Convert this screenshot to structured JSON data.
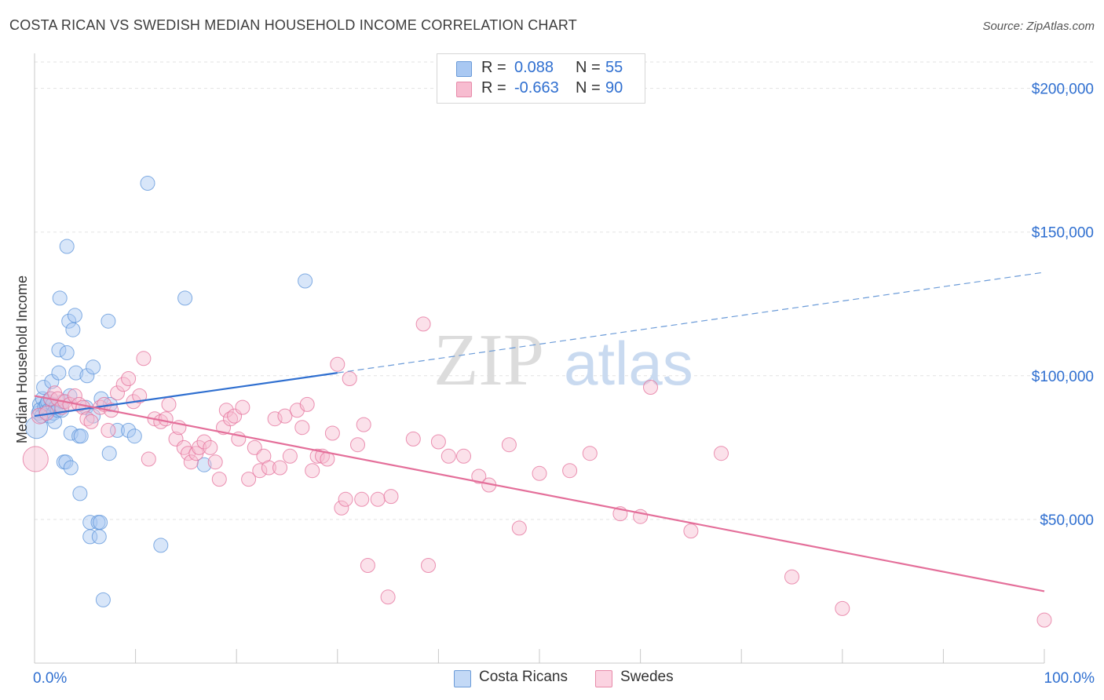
{
  "header": {
    "title": "COSTA RICAN VS SWEDISH MEDIAN HOUSEHOLD INCOME CORRELATION CHART",
    "source": "Source: ZipAtlas.com"
  },
  "watermark": {
    "part1": "ZIP",
    "part2": "atlas"
  },
  "legend_top": {
    "rows": [
      {
        "r_label": "R =",
        "r_value": "0.088",
        "n_label": "N =",
        "n_value": "55",
        "color": "#a9c8f2",
        "stroke": "#6b9bd8"
      },
      {
        "r_label": "R =",
        "r_value": "-0.663",
        "n_label": "N =",
        "n_value": "90",
        "color": "#f7bcd0",
        "stroke": "#e78aa9"
      }
    ]
  },
  "legend_bottom": {
    "items": [
      {
        "label": "Costa Ricans",
        "color": "#a9c8f2",
        "stroke": "#6b9bd8"
      },
      {
        "label": "Swedes",
        "color": "#f7bcd0",
        "stroke": "#e78aa9"
      }
    ]
  },
  "chart_data": {
    "type": "scatter",
    "title": "COSTA RICAN VS SWEDISH MEDIAN HOUSEHOLD INCOME CORRELATION CHART",
    "xlabel": "",
    "ylabel": "Median Household Income",
    "xlim": [
      0,
      100
    ],
    "ylim": [
      0,
      210000
    ],
    "x_tick_labels": [
      "0.0%",
      "100.0%"
    ],
    "y_ticks": [
      50000,
      100000,
      150000,
      200000
    ],
    "y_tick_labels": [
      "$50,000",
      "$100,000",
      "$150,000",
      "$200,000"
    ],
    "grid": true,
    "legend_position": "top-center",
    "series": [
      {
        "name": "Costa Ricans",
        "color": "#5b93d9",
        "fill": "#a9c8f2",
        "r": 0.088,
        "n": 55,
        "trend": {
          "x0": 0,
          "y0": 86000,
          "x1": 30,
          "y1": 101000,
          "dash_to_x": 100,
          "dash_to_y": 136000
        },
        "points": [
          [
            0.2,
            82000,
            14
          ],
          [
            0.4,
            87000,
            9
          ],
          [
            0.5,
            90000,
            9
          ],
          [
            0.6,
            88000,
            10
          ],
          [
            0.7,
            86000,
            9
          ],
          [
            0.8,
            92000,
            9
          ],
          [
            0.9,
            96000,
            9
          ],
          [
            1.0,
            89000,
            9
          ],
          [
            1.1,
            87500,
            9
          ],
          [
            1.2,
            90000,
            9
          ],
          [
            1.3,
            91000,
            9
          ],
          [
            1.4,
            88000,
            9
          ],
          [
            1.5,
            86000,
            9
          ],
          [
            1.6,
            92000,
            9
          ],
          [
            1.7,
            98000,
            9
          ],
          [
            1.8,
            90000,
            9
          ],
          [
            1.9,
            87000,
            9
          ],
          [
            2.0,
            84000,
            9
          ],
          [
            2.1,
            89000,
            9
          ],
          [
            2.3,
            88000,
            9
          ],
          [
            2.4,
            101000,
            9
          ],
          [
            2.4,
            109000,
            9
          ],
          [
            2.5,
            127000,
            9
          ],
          [
            2.7,
            88000,
            9
          ],
          [
            2.8,
            91000,
            9
          ],
          [
            2.9,
            70000,
            9
          ],
          [
            3.1,
            70000,
            9
          ],
          [
            3.2,
            108000,
            9
          ],
          [
            3.2,
            145000,
            9
          ],
          [
            3.4,
            119000,
            9
          ],
          [
            3.5,
            93000,
            9
          ],
          [
            3.6,
            68000,
            9
          ],
          [
            3.6,
            80000,
            9
          ],
          [
            3.8,
            116000,
            9
          ],
          [
            4.0,
            121000,
            9
          ],
          [
            4.1,
            101000,
            9
          ],
          [
            4.4,
            79000,
            9
          ],
          [
            4.5,
            59000,
            9
          ],
          [
            4.6,
            79000,
            9
          ],
          [
            5.1,
            89000,
            9
          ],
          [
            5.2,
            100000,
            9
          ],
          [
            5.5,
            49000,
            9
          ],
          [
            5.5,
            44000,
            9
          ],
          [
            5.8,
            103000,
            9
          ],
          [
            5.8,
            86000,
            9
          ],
          [
            6.3,
            49000,
            9
          ],
          [
            6.4,
            44000,
            9
          ],
          [
            6.5,
            49000,
            9
          ],
          [
            6.6,
            92000,
            9
          ],
          [
            6.8,
            22000,
            9
          ],
          [
            7.3,
            119000,
            9
          ],
          [
            7.4,
            73000,
            9
          ],
          [
            7.5,
            90000,
            9
          ],
          [
            8.2,
            81000,
            9
          ],
          [
            9.3,
            81000,
            9
          ],
          [
            9.9,
            79000,
            9
          ],
          [
            11.2,
            167000,
            9
          ],
          [
            12.5,
            41000,
            9
          ],
          [
            14.9,
            127000,
            9
          ],
          [
            16.8,
            69000,
            9
          ],
          [
            26.8,
            133000,
            9
          ]
        ]
      },
      {
        "name": "Swedes",
        "color": "#e46f9a",
        "fill": "#f7bcd0",
        "r": -0.663,
        "n": 90,
        "trend": {
          "x0": 0,
          "y0": 93000,
          "x1": 100,
          "y1": 25000
        },
        "points": [
          [
            0.1,
            71000,
            16
          ],
          [
            0.5,
            86000,
            10
          ],
          [
            1.2,
            87000,
            9
          ],
          [
            1.6,
            92000,
            9
          ],
          [
            2.0,
            94000,
            9
          ],
          [
            2.3,
            92000,
            9
          ],
          [
            2.7,
            89000,
            9
          ],
          [
            3.0,
            91000,
            9
          ],
          [
            3.5,
            90000,
            9
          ],
          [
            4.0,
            93000,
            9
          ],
          [
            4.4,
            90000,
            9
          ],
          [
            4.8,
            89000,
            9
          ],
          [
            5.2,
            85000,
            9
          ],
          [
            5.6,
            84000,
            9
          ],
          [
            6.5,
            89000,
            9
          ],
          [
            6.9,
            90000,
            9
          ],
          [
            7.3,
            81000,
            9
          ],
          [
            7.6,
            88000,
            9
          ],
          [
            8.2,
            94000,
            9
          ],
          [
            8.8,
            97000,
            9
          ],
          [
            9.3,
            99000,
            9
          ],
          [
            9.8,
            91000,
            9
          ],
          [
            10.4,
            93000,
            9
          ],
          [
            10.8,
            106000,
            9
          ],
          [
            11.3,
            71000,
            9
          ],
          [
            11.9,
            85000,
            9
          ],
          [
            12.5,
            84000,
            9
          ],
          [
            13.0,
            85000,
            9
          ],
          [
            13.3,
            90000,
            9
          ],
          [
            14.0,
            78000,
            9
          ],
          [
            14.3,
            82000,
            9
          ],
          [
            14.8,
            75000,
            9
          ],
          [
            15.2,
            73000,
            9
          ],
          [
            15.5,
            70000,
            9
          ],
          [
            16.0,
            73000,
            9
          ],
          [
            16.3,
            75000,
            9
          ],
          [
            16.8,
            77000,
            9
          ],
          [
            17.4,
            75000,
            9
          ],
          [
            17.9,
            70000,
            9
          ],
          [
            18.3,
            64000,
            9
          ],
          [
            18.7,
            82000,
            9
          ],
          [
            19.0,
            88000,
            9
          ],
          [
            19.4,
            85000,
            9
          ],
          [
            19.8,
            86000,
            9
          ],
          [
            20.2,
            78000,
            9
          ],
          [
            20.6,
            89000,
            9
          ],
          [
            21.2,
            64000,
            9
          ],
          [
            21.8,
            75000,
            9
          ],
          [
            22.3,
            67000,
            9
          ],
          [
            22.7,
            72000,
            9
          ],
          [
            23.2,
            68000,
            9
          ],
          [
            23.8,
            85000,
            9
          ],
          [
            24.3,
            68000,
            9
          ],
          [
            24.8,
            86000,
            9
          ],
          [
            25.3,
            72000,
            9
          ],
          [
            26.0,
            88000,
            9
          ],
          [
            26.5,
            82000,
            9
          ],
          [
            27.0,
            90000,
            9
          ],
          [
            27.5,
            67000,
            9
          ],
          [
            28.0,
            72000,
            9
          ],
          [
            28.5,
            72000,
            9
          ],
          [
            29.0,
            71000,
            9
          ],
          [
            29.5,
            80000,
            9
          ],
          [
            30.0,
            104000,
            9
          ],
          [
            30.4,
            54000,
            9
          ],
          [
            30.8,
            57000,
            9
          ],
          [
            31.2,
            99000,
            9
          ],
          [
            32.0,
            76000,
            9
          ],
          [
            32.4,
            57000,
            9
          ],
          [
            32.6,
            83000,
            9
          ],
          [
            33.0,
            34000,
            9
          ],
          [
            34.0,
            57000,
            9
          ],
          [
            35.0,
            23000,
            9
          ],
          [
            35.3,
            58000,
            9
          ],
          [
            37.5,
            78000,
            9
          ],
          [
            38.5,
            118000,
            9
          ],
          [
            39.0,
            34000,
            9
          ],
          [
            40.0,
            77000,
            9
          ],
          [
            41.0,
            72000,
            9
          ],
          [
            42.5,
            72000,
            9
          ],
          [
            44.0,
            65000,
            9
          ],
          [
            45.0,
            62000,
            9
          ],
          [
            47.0,
            76000,
            9
          ],
          [
            48.0,
            47000,
            9
          ],
          [
            50.0,
            66000,
            9
          ],
          [
            53.0,
            67000,
            9
          ],
          [
            55.0,
            73000,
            9
          ],
          [
            58.0,
            52000,
            9
          ],
          [
            60.0,
            51000,
            9
          ],
          [
            61.0,
            96000,
            9
          ],
          [
            65.0,
            46000,
            9
          ],
          [
            68.0,
            73000,
            9
          ],
          [
            75.0,
            30000,
            9
          ],
          [
            80.0,
            19000,
            9
          ],
          [
            100.0,
            15000,
            9
          ]
        ]
      }
    ]
  }
}
